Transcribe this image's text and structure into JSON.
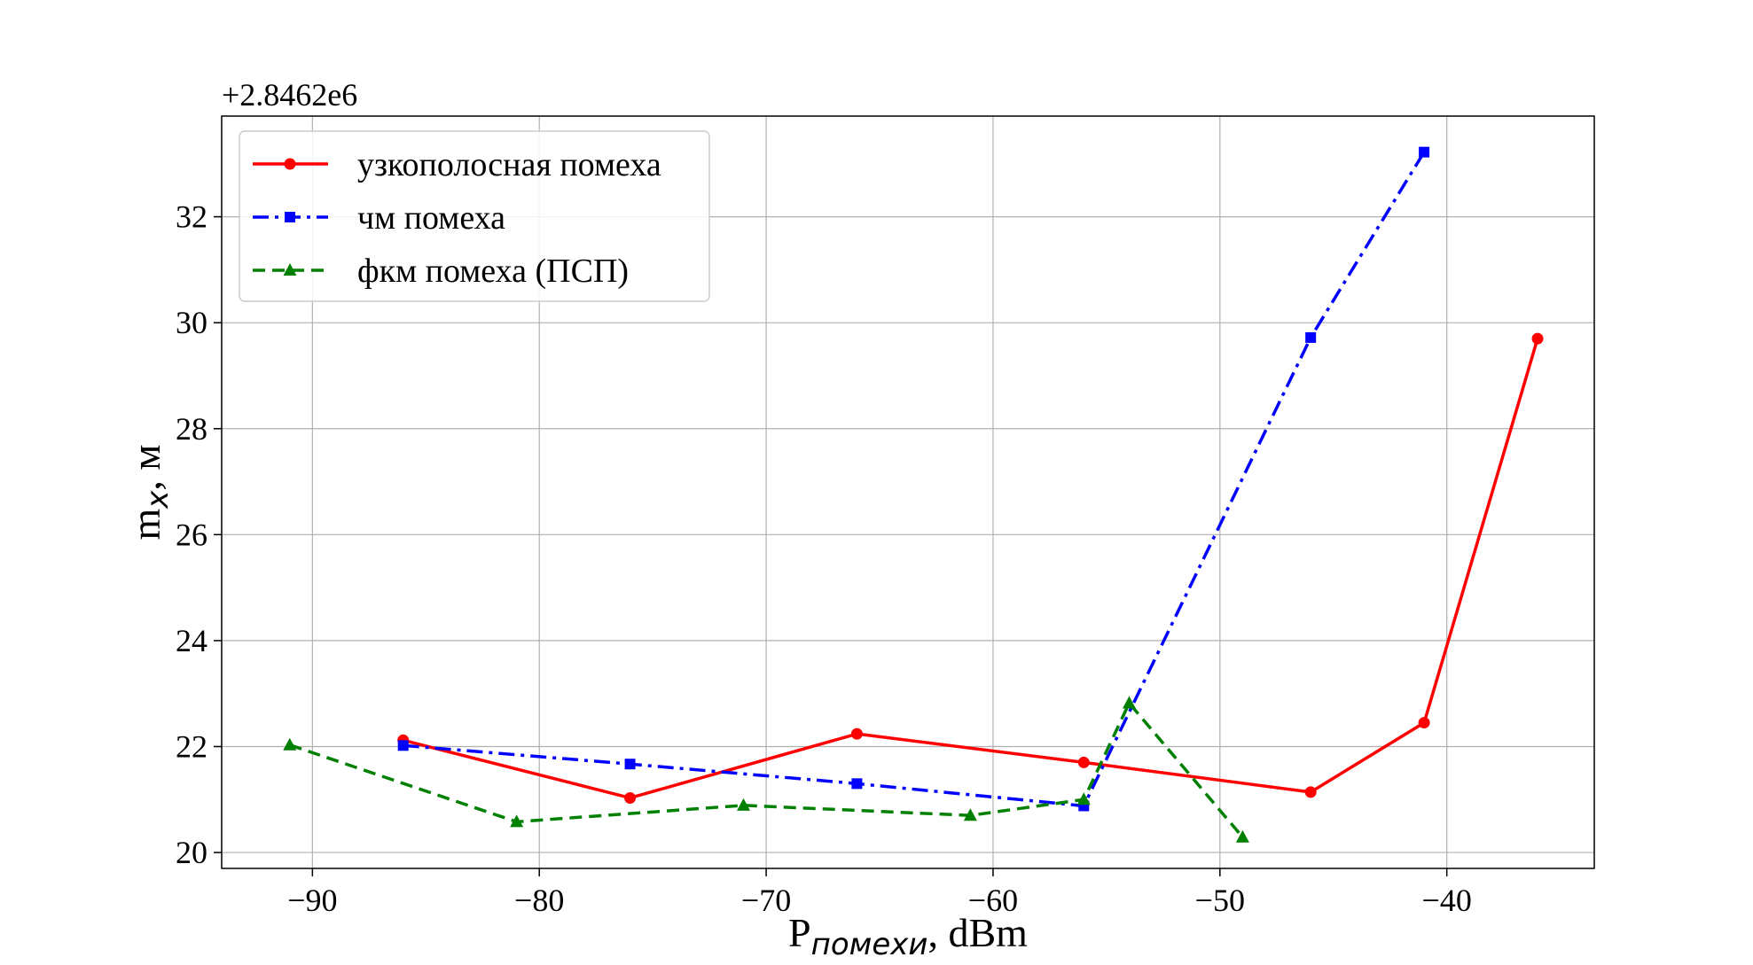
{
  "chart_data": {
    "type": "line",
    "offset_text": "+2.8462e6",
    "xlabel": {
      "main": "P",
      "sub": "помехи",
      "suffix": ", dBm"
    },
    "ylabel": {
      "main": "m",
      "sub": "x",
      "suffix": ", м"
    },
    "xlim": [
      -94,
      -33.5
    ],
    "ylim": [
      19.7,
      33.9
    ],
    "x_ticks": [
      -90,
      -80,
      -70,
      -60,
      -50,
      -40
    ],
    "x_tick_labels": [
      "−90",
      "−80",
      "−70",
      "−60",
      "−50",
      "−40"
    ],
    "y_ticks": [
      20,
      22,
      24,
      26,
      28,
      30,
      32
    ],
    "y_tick_labels": [
      "20",
      "22",
      "24",
      "26",
      "28",
      "30",
      "32"
    ],
    "grid": true,
    "legend_position": "top-left",
    "series": [
      {
        "name": "узкополосная помеха",
        "color": "#ff0000",
        "line_style": "solid",
        "marker": "circle",
        "x": [
          -86,
          -76,
          -66,
          -56,
          -46,
          -41,
          -36
        ],
        "y": [
          22.12,
          21.03,
          22.24,
          21.7,
          21.14,
          22.45,
          29.7
        ]
      },
      {
        "name": "чм помеха",
        "color": "#0000ff",
        "line_style": "dashdot",
        "marker": "square",
        "x": [
          -86,
          -76,
          -66,
          -56,
          -46,
          -41
        ],
        "y": [
          22.02,
          21.67,
          21.3,
          20.88,
          29.72,
          33.22
        ]
      },
      {
        "name": "фкм помеха (ПСП)",
        "color": "#008000",
        "line_style": "dashed",
        "marker": "triangle",
        "x": [
          -91,
          -81,
          -71,
          -61,
          -56,
          -54,
          -49
        ],
        "y": [
          22.03,
          20.58,
          20.89,
          20.7,
          21.0,
          22.82,
          20.29
        ]
      }
    ]
  }
}
